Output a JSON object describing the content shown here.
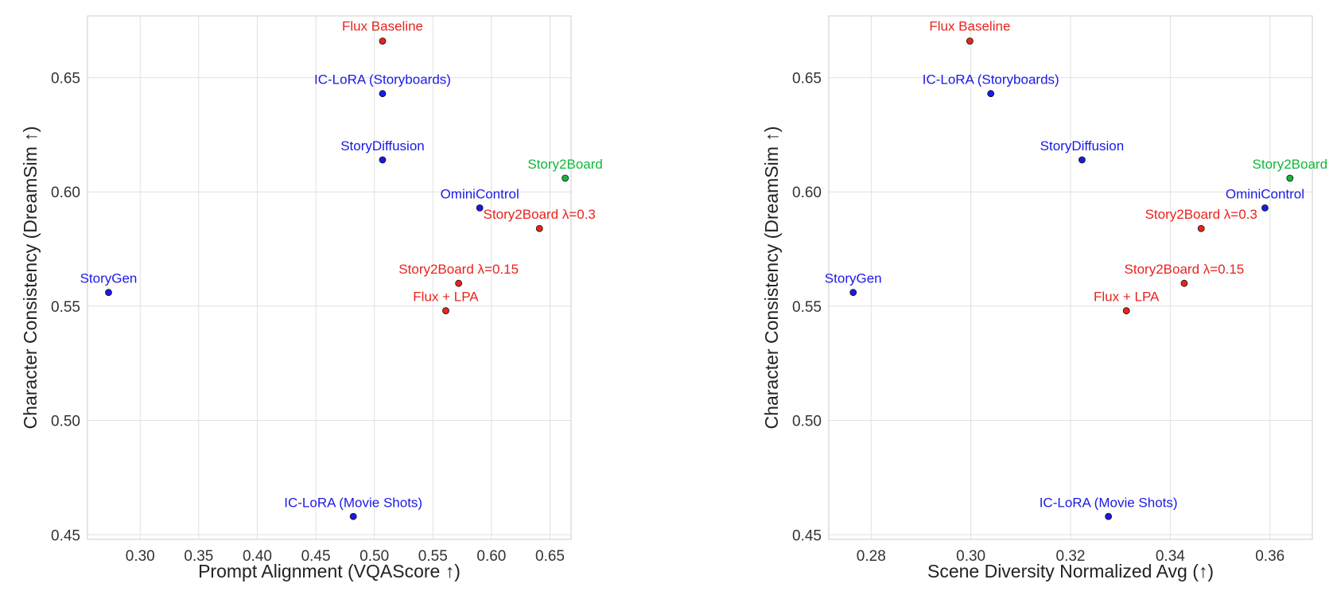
{
  "chart_data": [
    {
      "type": "scatter",
      "xlabel": "Prompt Alignment (VQAScore ↑)",
      "ylabel": "Character Consistency (DreamSim ↑)",
      "xlim": [
        0.255,
        0.668
      ],
      "ylim": [
        0.448,
        0.677
      ],
      "xticks": [
        0.3,
        0.35,
        0.4,
        0.45,
        0.5,
        0.55,
        0.6,
        0.65
      ],
      "xtick_labels": [
        "0.30",
        "0.35",
        "0.40",
        "0.45",
        "0.50",
        "0.55",
        "0.60",
        "0.65"
      ],
      "yticks": [
        0.45,
        0.5,
        0.55,
        0.6,
        0.65
      ],
      "ytick_labels": [
        "0.45",
        "0.50",
        "0.55",
        "0.60",
        "0.65"
      ],
      "grid": true,
      "points": [
        {
          "label": "Flux Baseline",
          "x": 0.507,
          "y": 0.666,
          "color": "#e8241d"
        },
        {
          "label": "IC-LoRA (Storyboards)",
          "x": 0.507,
          "y": 0.643,
          "color": "#1a1ae6"
        },
        {
          "label": "StoryDiffusion",
          "x": 0.507,
          "y": 0.614,
          "color": "#1a1ae6"
        },
        {
          "label": "Story2Board",
          "x": 0.663,
          "y": 0.606,
          "color": "#12b83a"
        },
        {
          "label": "OminiControl",
          "x": 0.59,
          "y": 0.593,
          "color": "#1a1ae6"
        },
        {
          "label": "Story2Board λ=0.3",
          "x": 0.641,
          "y": 0.584,
          "color": "#e8241d"
        },
        {
          "label": "StoryGen",
          "x": 0.273,
          "y": 0.556,
          "color": "#1a1ae6"
        },
        {
          "label": "Story2Board λ=0.15",
          "x": 0.572,
          "y": 0.56,
          "color": "#e8241d"
        },
        {
          "label": "Flux + LPA",
          "x": 0.561,
          "y": 0.548,
          "color": "#e8241d"
        },
        {
          "label": "IC-LoRA (Movie Shots)",
          "x": 0.482,
          "y": 0.458,
          "color": "#1a1ae6"
        }
      ]
    },
    {
      "type": "scatter",
      "xlabel": "Scene Diversity Normalized Avg (↑)",
      "ylabel": "Character Consistency (DreamSim ↑)",
      "xlim": [
        0.2715,
        0.3685
      ],
      "ylim": [
        0.448,
        0.677
      ],
      "xticks": [
        0.28,
        0.3,
        0.32,
        0.34,
        0.36
      ],
      "xtick_labels": [
        "0.28",
        "0.30",
        "0.32",
        "0.34",
        "0.36"
      ],
      "yticks": [
        0.45,
        0.5,
        0.55,
        0.6,
        0.65
      ],
      "ytick_labels": [
        "0.45",
        "0.50",
        "0.55",
        "0.60",
        "0.65"
      ],
      "grid": true,
      "points": [
        {
          "label": "Flux Baseline",
          "x": 0.2998,
          "y": 0.666,
          "color": "#e8241d"
        },
        {
          "label": "IC-LoRA (Storyboards)",
          "x": 0.304,
          "y": 0.643,
          "color": "#1a1ae6"
        },
        {
          "label": "StoryDiffusion",
          "x": 0.3223,
          "y": 0.614,
          "color": "#1a1ae6"
        },
        {
          "label": "Story2Board",
          "x": 0.364,
          "y": 0.606,
          "color": "#12b83a"
        },
        {
          "label": "OminiControl",
          "x": 0.359,
          "y": 0.593,
          "color": "#1a1ae6"
        },
        {
          "label": "Story2Board λ=0.3",
          "x": 0.3462,
          "y": 0.584,
          "color": "#e8241d"
        },
        {
          "label": "StoryGen",
          "x": 0.2764,
          "y": 0.556,
          "color": "#1a1ae6"
        },
        {
          "label": "Story2Board λ=0.15",
          "x": 0.3428,
          "y": 0.56,
          "color": "#e8241d"
        },
        {
          "label": "Flux + LPA",
          "x": 0.3312,
          "y": 0.548,
          "color": "#e8241d"
        },
        {
          "label": "IC-LoRA (Movie Shots)",
          "x": 0.3276,
          "y": 0.458,
          "color": "#1a1ae6"
        }
      ]
    }
  ]
}
